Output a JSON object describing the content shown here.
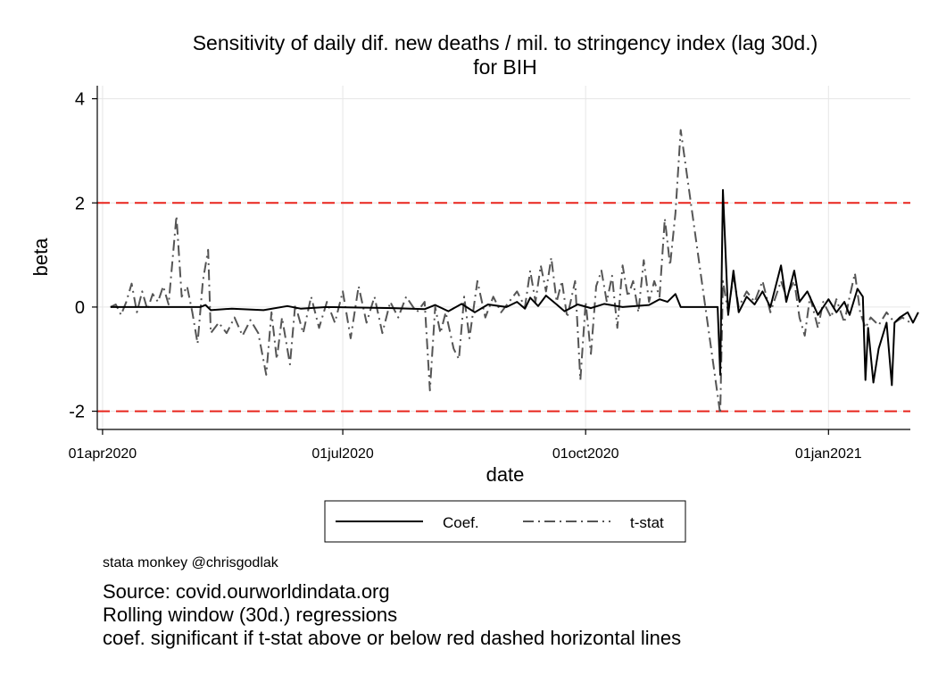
{
  "chart_data": {
    "type": "line",
    "title": "Sensitivity of daily dif. new deaths / mil. to stringency index (lag 30d.)",
    "subtitle": "for BIH",
    "xlabel": "date",
    "ylabel": "beta",
    "x_ticks": [
      "01apr2020",
      "01jul2020",
      "01oct2020",
      "01jan2021"
    ],
    "y_ticks": [
      "-2",
      "0",
      "2",
      "4"
    ],
    "xlim": [
      "2020-03-30",
      "2021-02-01"
    ],
    "ylim": [
      -2.35,
      4.25
    ],
    "grid": true,
    "reference_lines": [
      2,
      -2
    ],
    "reference_color": "#e8241c",
    "legend_position": "bottom",
    "series": [
      {
        "name": "Coef.",
        "color": "#000000",
        "style": "solid",
        "points": [
          [
            "2020-04-04",
            0
          ],
          [
            "2020-05-08",
            0
          ],
          [
            "2020-05-10",
            0.04
          ],
          [
            "2020-05-12",
            -0.06
          ],
          [
            "2020-05-20",
            -0.03
          ],
          [
            "2020-06-01",
            -0.06
          ],
          [
            "2020-06-10",
            0.02
          ],
          [
            "2020-06-15",
            -0.03
          ],
          [
            "2020-06-25",
            0
          ],
          [
            "2020-07-20",
            -0.02
          ],
          [
            "2020-08-01",
            -0.04
          ],
          [
            "2020-08-05",
            0.04
          ],
          [
            "2020-08-10",
            -0.08
          ],
          [
            "2020-08-15",
            0.06
          ],
          [
            "2020-08-20",
            -0.1
          ],
          [
            "2020-08-25",
            0.05
          ],
          [
            "2020-09-01",
            0
          ],
          [
            "2020-09-05",
            0.1
          ],
          [
            "2020-09-08",
            -0.03
          ],
          [
            "2020-09-10",
            0.18
          ],
          [
            "2020-09-13",
            0.02
          ],
          [
            "2020-09-16",
            0.22
          ],
          [
            "2020-09-20",
            0.05
          ],
          [
            "2020-09-23",
            -0.08
          ],
          [
            "2020-09-28",
            0.05
          ],
          [
            "2020-10-03",
            -0.02
          ],
          [
            "2020-10-08",
            0.06
          ],
          [
            "2020-10-15",
            0
          ],
          [
            "2020-10-25",
            0.04
          ],
          [
            "2020-10-29",
            0.15
          ],
          [
            "2020-11-01",
            0.1
          ],
          [
            "2020-11-04",
            0.25
          ],
          [
            "2020-11-06",
            0
          ],
          [
            "2020-11-20",
            0
          ],
          [
            "2020-11-21",
            -1.3
          ],
          [
            "2020-11-22",
            2.25
          ],
          [
            "2020-11-24",
            -0.15
          ],
          [
            "2020-11-26",
            0.7
          ],
          [
            "2020-11-28",
            -0.1
          ],
          [
            "2020-12-01",
            0.2
          ],
          [
            "2020-12-04",
            0.05
          ],
          [
            "2020-12-07",
            0.3
          ],
          [
            "2020-12-10",
            0
          ],
          [
            "2020-12-14",
            0.8
          ],
          [
            "2020-12-16",
            0.1
          ],
          [
            "2020-12-19",
            0.7
          ],
          [
            "2020-12-21",
            0.1
          ],
          [
            "2020-12-24",
            0.3
          ],
          [
            "2020-12-28",
            -0.15
          ],
          [
            "2021-01-01",
            0.15
          ],
          [
            "2021-01-04",
            -0.1
          ],
          [
            "2021-01-07",
            0.1
          ],
          [
            "2021-01-09",
            -0.15
          ],
          [
            "2021-01-12",
            0.35
          ],
          [
            "2021-01-14",
            0.2
          ],
          [
            "2021-01-15",
            -1.4
          ],
          [
            "2021-01-16",
            -0.4
          ],
          [
            "2021-01-18",
            -1.45
          ],
          [
            "2021-01-20",
            -0.8
          ],
          [
            "2021-01-23",
            -0.3
          ],
          [
            "2021-01-25",
            -1.5
          ],
          [
            "2021-01-26",
            -0.3
          ],
          [
            "2021-01-28",
            -0.2
          ],
          [
            "2021-01-31",
            -0.1
          ],
          [
            "2021-02-02",
            -0.3
          ],
          [
            "2021-02-04",
            -0.1
          ]
        ]
      },
      {
        "name": "t-stat",
        "color": "#555555",
        "style": "dash-dot",
        "points": [
          [
            "2020-04-04",
            0
          ],
          [
            "2020-04-06",
            0.05
          ],
          [
            "2020-04-08",
            -0.15
          ],
          [
            "2020-04-10",
            0.1
          ],
          [
            "2020-04-12",
            0.45
          ],
          [
            "2020-04-14",
            -0.1
          ],
          [
            "2020-04-16",
            0.3
          ],
          [
            "2020-04-18",
            -0.05
          ],
          [
            "2020-04-20",
            0.25
          ],
          [
            "2020-04-22",
            0.1
          ],
          [
            "2020-04-24",
            0.4
          ],
          [
            "2020-04-26",
            0.05
          ],
          [
            "2020-04-29",
            1.75
          ],
          [
            "2020-05-01",
            0.2
          ],
          [
            "2020-05-03",
            0.4
          ],
          [
            "2020-05-05",
            -0.1
          ],
          [
            "2020-05-07",
            -0.7
          ],
          [
            "2020-05-09",
            0.5
          ],
          [
            "2020-05-11",
            1.1
          ],
          [
            "2020-05-12",
            -0.5
          ],
          [
            "2020-05-15",
            -0.3
          ],
          [
            "2020-05-18",
            -0.5
          ],
          [
            "2020-05-21",
            -0.2
          ],
          [
            "2020-05-24",
            -0.55
          ],
          [
            "2020-05-27",
            -0.25
          ],
          [
            "2020-05-30",
            -0.5
          ],
          [
            "2020-06-02",
            -1.3
          ],
          [
            "2020-06-04",
            -0.1
          ],
          [
            "2020-06-06",
            -1.0
          ],
          [
            "2020-06-08",
            -0.2
          ],
          [
            "2020-06-11",
            -1.1
          ],
          [
            "2020-06-13",
            0.05
          ],
          [
            "2020-06-16",
            -0.5
          ],
          [
            "2020-06-19",
            0.2
          ],
          [
            "2020-06-22",
            -0.4
          ],
          [
            "2020-06-25",
            0.1
          ],
          [
            "2020-06-28",
            -0.3
          ],
          [
            "2020-07-01",
            0.3
          ],
          [
            "2020-07-04",
            -0.6
          ],
          [
            "2020-07-07",
            0.4
          ],
          [
            "2020-07-10",
            -0.3
          ],
          [
            "2020-07-13",
            0.2
          ],
          [
            "2020-07-16",
            -0.5
          ],
          [
            "2020-07-19",
            0.1
          ],
          [
            "2020-07-22",
            -0.2
          ],
          [
            "2020-07-25",
            0.2
          ],
          [
            "2020-07-29",
            -0.1
          ],
          [
            "2020-08-01",
            0.1
          ],
          [
            "2020-08-03",
            -1.6
          ],
          [
            "2020-08-05",
            0
          ],
          [
            "2020-08-07",
            -0.5
          ],
          [
            "2020-08-09",
            -0.1
          ],
          [
            "2020-08-12",
            -0.8
          ],
          [
            "2020-08-14",
            -1.0
          ],
          [
            "2020-08-16",
            0.2
          ],
          [
            "2020-08-18",
            -0.6
          ],
          [
            "2020-08-21",
            0.5
          ],
          [
            "2020-08-24",
            -0.2
          ],
          [
            "2020-08-27",
            0.2
          ],
          [
            "2020-08-30",
            -0.1
          ],
          [
            "2020-09-02",
            0.1
          ],
          [
            "2020-09-05",
            0.3
          ],
          [
            "2020-09-08",
            0
          ],
          [
            "2020-09-10",
            0.7
          ],
          [
            "2020-09-12",
            0.1
          ],
          [
            "2020-09-14",
            0.8
          ],
          [
            "2020-09-16",
            0.3
          ],
          [
            "2020-09-18",
            0.95
          ],
          [
            "2020-09-20",
            0.1
          ],
          [
            "2020-09-22",
            0.5
          ],
          [
            "2020-09-24",
            -0.2
          ],
          [
            "2020-09-27",
            0.5
          ],
          [
            "2020-09-29",
            -1.4
          ],
          [
            "2020-10-01",
            0.1
          ],
          [
            "2020-10-03",
            -0.9
          ],
          [
            "2020-10-05",
            0.4
          ],
          [
            "2020-10-07",
            0.7
          ],
          [
            "2020-10-09",
            0.1
          ],
          [
            "2020-10-11",
            0.6
          ],
          [
            "2020-10-13",
            -0.4
          ],
          [
            "2020-10-15",
            0.8
          ],
          [
            "2020-10-17",
            0.2
          ],
          [
            "2020-10-19",
            0.5
          ],
          [
            "2020-10-21",
            -0.1
          ],
          [
            "2020-10-23",
            0.9
          ],
          [
            "2020-10-25",
            0.1
          ],
          [
            "2020-10-27",
            0.5
          ],
          [
            "2020-10-29",
            0.2
          ],
          [
            "2020-10-31",
            1.7
          ],
          [
            "2020-11-02",
            0.8
          ],
          [
            "2020-11-04",
            1.8
          ],
          [
            "2020-11-06",
            3.4
          ],
          [
            "2020-11-21",
            -2.05
          ],
          [
            "2020-11-22",
            0.5
          ],
          [
            "2020-11-24",
            -0.1
          ],
          [
            "2020-11-26",
            0.6
          ],
          [
            "2020-11-28",
            0
          ],
          [
            "2020-12-01",
            0.3
          ],
          [
            "2020-12-04",
            0.1
          ],
          [
            "2020-12-07",
            0.5
          ],
          [
            "2020-12-10",
            -0.1
          ],
          [
            "2020-12-14",
            0.5
          ],
          [
            "2020-12-16",
            0.2
          ],
          [
            "2020-12-19",
            0.5
          ],
          [
            "2020-12-21",
            -0.2
          ],
          [
            "2020-12-23",
            -0.55
          ],
          [
            "2020-12-25",
            0.2
          ],
          [
            "2020-12-28",
            -0.4
          ],
          [
            "2020-12-30",
            0.1
          ],
          [
            "2021-01-02",
            -0.2
          ],
          [
            "2021-01-04",
            0.15
          ],
          [
            "2021-01-07",
            -0.3
          ],
          [
            "2021-01-09",
            0.2
          ],
          [
            "2021-01-11",
            0.65
          ],
          [
            "2021-01-13",
            -0.1
          ],
          [
            "2021-01-15",
            -0.4
          ],
          [
            "2021-01-17",
            -0.2
          ],
          [
            "2021-01-20",
            -0.35
          ],
          [
            "2021-01-23",
            -0.1
          ],
          [
            "2021-01-26",
            -0.3
          ],
          [
            "2021-01-29",
            -0.2
          ],
          [
            "2021-02-01",
            -0.3
          ]
        ]
      }
    ]
  },
  "notes": {
    "credit": "stata monkey @chrisgodlak",
    "source": "Source: covid.ourworldindata.org",
    "method": "Rolling window (30d.) regressions",
    "significance": "coef. significant if t-stat above or below red dashed horizontal lines"
  }
}
